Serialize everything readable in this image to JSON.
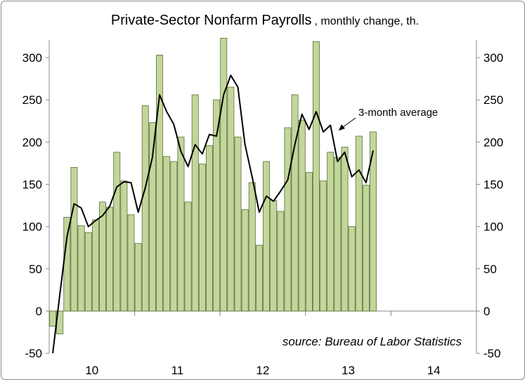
{
  "chart_data": {
    "type": "bar",
    "title": "Private-Sector Nonfarm Payrolls",
    "subtitle": "monthly change, th.",
    "ylim": [
      -50,
      330
    ],
    "yticks": [
      -50,
      0,
      50,
      100,
      150,
      200,
      250,
      300
    ],
    "xtick_labels": [
      "10",
      "11",
      "12",
      "13",
      "14"
    ],
    "x_range": [
      "2009-10",
      "2014-09"
    ],
    "first_month": "2009-10",
    "grid": false,
    "series": [
      {
        "name": "Monthly change",
        "style": "bar",
        "color": "#c3d69b",
        "values": [
          -18,
          -27,
          111,
          170,
          101,
          93,
          108,
          129,
          123,
          188,
          154,
          114,
          80,
          243,
          223,
          303,
          183,
          177,
          206,
          129,
          256,
          174,
          196,
          250,
          323,
          265,
          206,
          120,
          152,
          78,
          177,
          131,
          118,
          217,
          256,
          226,
          164,
          319,
          154,
          188,
          182,
          194,
          100,
          207,
          149,
          212
        ]
      },
      {
        "name": "3-month average",
        "style": "line",
        "color": "#000000",
        "values": [
          -50,
          20,
          88,
          127,
          122,
          100,
          107,
          113,
          124,
          147,
          153,
          152,
          117,
          146,
          182,
          256,
          236,
          221,
          189,
          171,
          197,
          186,
          209,
          207,
          256,
          279,
          265,
          197,
          159,
          117,
          136,
          130,
          142,
          155,
          197,
          233,
          215,
          236,
          212,
          220,
          177,
          188,
          159,
          167,
          152,
          190
        ]
      }
    ],
    "annotation": "3-month average",
    "source_note": "source: Bureau of Labor Statistics",
    "colors": {
      "bar_fill": "#c3d69b",
      "bar_stroke": "#5a6e35",
      "line": "#000000",
      "axis": "#888888"
    }
  }
}
